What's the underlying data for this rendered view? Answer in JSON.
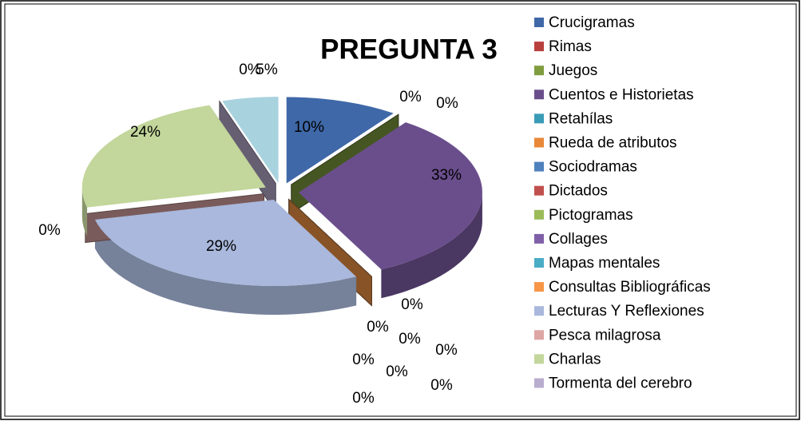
{
  "chart_data": {
    "type": "pie",
    "title": "PREGUNTA 3",
    "categories": [
      "Crucigramas",
      "Rimas",
      "Juegos",
      "Cuentos  e Historietas",
      "Retahílas",
      "Rueda de atributos",
      "Sociodramas",
      "Dictados",
      "Pictogramas",
      "Collages",
      "Mapas mentales",
      "Consultas Bibliográficas",
      "Lecturas Y Reflexiones",
      "Pesca milagrosa",
      "Charlas",
      "Tormenta del cerebro",
      null
    ],
    "values": [
      10,
      0,
      0,
      33,
      0,
      0,
      0,
      0,
      0,
      0,
      0,
      0,
      29,
      0,
      24,
      0,
      5
    ],
    "value_labels": [
      "10%",
      "0%",
      "0%",
      "33%",
      "0%",
      "0%",
      "0%",
      "0%",
      "0%",
      "0%",
      "0%",
      "0%",
      "29%",
      "0%",
      "24%",
      "0%",
      "5%"
    ],
    "colors": [
      "#3f68a8",
      "#b8403d",
      "#7f9c3f",
      "#6a4e8c",
      "#3a9bb6",
      "#e88838",
      "#4f81bd",
      "#c0504d",
      "#9bbb59",
      "#7f60a8",
      "#4bacc6",
      "#f79646",
      "#a9b8dc",
      "#dda6a5",
      "#c3d69b",
      "#b9adcf",
      "#a8d2de"
    ],
    "legend": "right"
  }
}
